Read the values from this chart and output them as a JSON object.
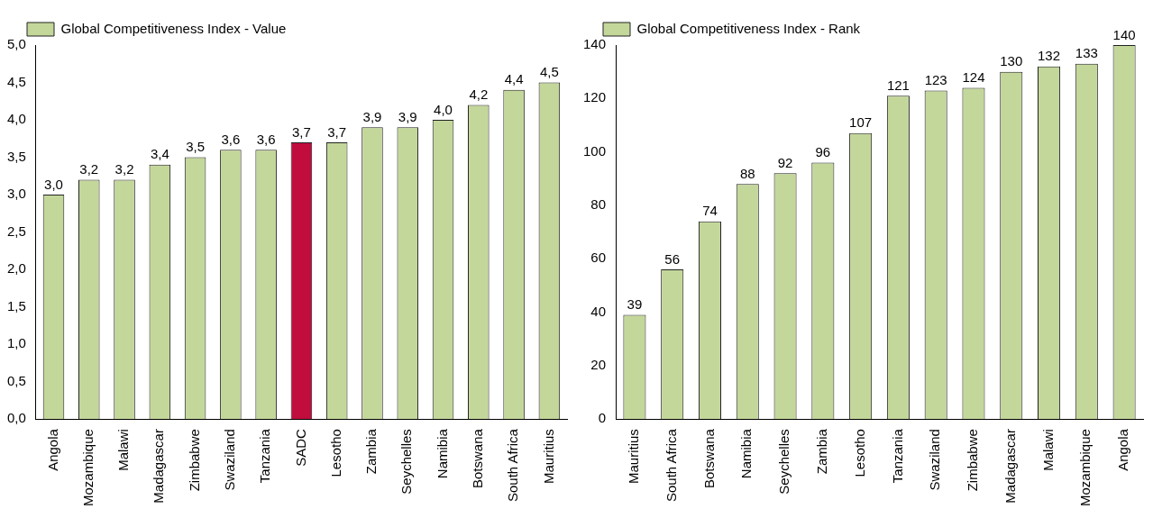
{
  "chart_data": [
    {
      "type": "bar",
      "categories": [
        "Angola",
        "Mozambique",
        "Malawi",
        "Madagascar",
        "Zimbabwe",
        "Swaziland",
        "Tanzania",
        "SADC",
        "Lesotho",
        "Zambia",
        "Seychelles",
        "Namibia",
        "Botswana",
        "South Africa",
        "Mauritius"
      ],
      "series": [
        {
          "name": "Global Competitiveness Index - Value",
          "color": "#c4d79b",
          "colors": [
            "#c4d79b",
            "#c4d79b",
            "#c4d79b",
            "#c4d79b",
            "#c4d79b",
            "#c4d79b",
            "#c4d79b",
            "#c00d3e",
            "#c4d79b",
            "#c4d79b",
            "#c4d79b",
            "#c4d79b",
            "#c4d79b",
            "#c4d79b",
            "#c4d79b"
          ],
          "values": [
            3.0,
            3.2,
            3.2,
            3.4,
            3.5,
            3.6,
            3.6,
            3.7,
            3.7,
            3.9,
            3.9,
            4.0,
            4.2,
            4.4,
            4.5
          ],
          "value_labels": [
            "3,0",
            "3,2",
            "3,2",
            "3,4",
            "3,5",
            "3,6",
            "3,6",
            "3,7",
            "3,7",
            "3,9",
            "3,9",
            "4,0",
            "4,2",
            "4,4",
            "4,5"
          ]
        }
      ],
      "ylim": [
        0,
        5
      ],
      "yticks": [
        {
          "value": 0,
          "label": "0,0"
        },
        {
          "value": 0.5,
          "label": "0,5"
        },
        {
          "value": 1,
          "label": "1,0"
        },
        {
          "value": 1.5,
          "label": "1,5"
        },
        {
          "value": 2,
          "label": "2,0"
        },
        {
          "value": 2.5,
          "label": "2,5"
        },
        {
          "value": 3,
          "label": "3,0"
        },
        {
          "value": 3.5,
          "label": "3,5"
        },
        {
          "value": 4,
          "label": "4,0"
        },
        {
          "value": 4.5,
          "label": "4,5"
        },
        {
          "value": 5,
          "label": "5,0"
        }
      ],
      "legend": "top left",
      "grid": false
    },
    {
      "type": "bar",
      "categories": [
        "Mauritius",
        "South Africa",
        "Botswana",
        "Namibia",
        "Seychelles",
        "Zambia",
        "Lesotho",
        "Tanzania",
        "Swaziland",
        "Zimbabwe",
        "Madagascar",
        "Malawi",
        "Mozambique",
        "Angola"
      ],
      "series": [
        {
          "name": "Global Competitiveness Index - Rank",
          "color": "#c4d79b",
          "values": [
            39,
            56,
            74,
            88,
            92,
            96,
            107,
            121,
            123,
            124,
            130,
            132,
            133,
            140
          ]
        }
      ],
      "data_labels": true,
      "ylim": [
        0,
        140
      ],
      "yticks": [
        0,
        20,
        40,
        60,
        80,
        100,
        120,
        140
      ],
      "legend": "top left",
      "grid": false
    }
  ]
}
